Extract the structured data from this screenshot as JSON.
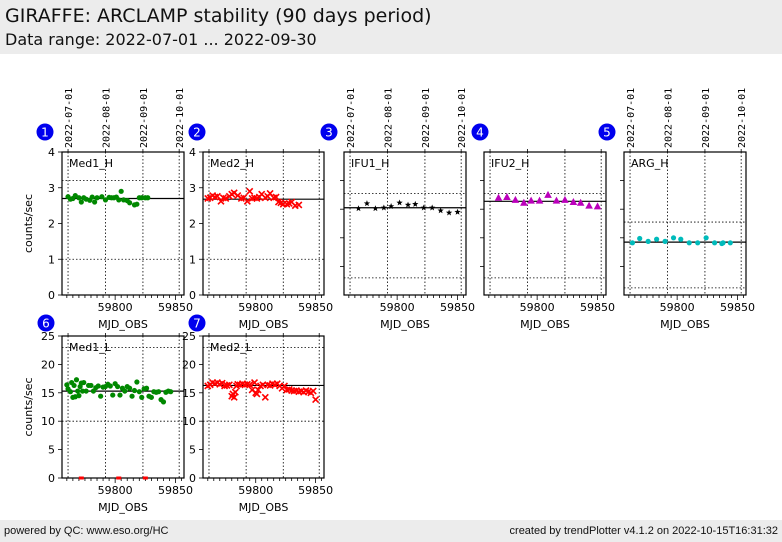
{
  "header": {
    "title": "GIRAFFE: ARCLAMP stability (90 days period)",
    "subtitle": "Data range: 2022-07-01 ... 2022-09-30"
  },
  "footer": {
    "left": "powered by QC: www.eso.org/HC",
    "right": "created by trendPlotter v4.1.2 on 2022-10-15T16:31:32"
  },
  "colors": {
    "badge": "#0000ee",
    "green": "#008800",
    "red": "#ff0000",
    "black": "#000000",
    "magenta": "#bb00bb",
    "cyan": "#00bbbb"
  },
  "chart_data": [
    {
      "id": 1,
      "type": "scatter",
      "label": "Med1_H",
      "marker": "circle",
      "color": "#008800",
      "xlabel": "MJD_OBS",
      "ylabel": "counts/sec",
      "xlim": [
        59756,
        59857
      ],
      "ylim": [
        0,
        4
      ],
      "yticks": [
        0,
        1,
        2,
        3,
        4
      ],
      "xticks": [
        59800,
        59850
      ],
      "date_ticks": [
        {
          "mjd": 59761,
          "label": "2022-07-01"
        },
        {
          "mjd": 59792,
          "label": "2022-08-01"
        },
        {
          "mjd": 59823,
          "label": "2022-09-01"
        },
        {
          "mjd": 59853,
          "label": "2022-10-01"
        }
      ],
      "mean": 2.7,
      "limits": [
        1.0,
        3.2
      ],
      "x": [
        59761,
        59763,
        59765,
        59767,
        59770,
        59772,
        59774,
        59776,
        59779,
        59781,
        59783,
        59785,
        59789,
        59792,
        59795,
        59797,
        59799,
        59801,
        59803,
        59805,
        59807,
        59810,
        59812,
        59816,
        59818,
        59820,
        59822,
        59825,
        59827
      ],
      "y": [
        2.75,
        2.68,
        2.7,
        2.78,
        2.72,
        2.6,
        2.72,
        2.68,
        2.65,
        2.74,
        2.6,
        2.72,
        2.75,
        2.66,
        2.73,
        2.72,
        2.72,
        2.74,
        2.66,
        2.9,
        2.66,
        2.64,
        2.58,
        2.52,
        2.54,
        2.72,
        2.72,
        2.72,
        2.72
      ]
    },
    {
      "id": 2,
      "type": "scatter",
      "label": "Med2_H",
      "marker": "x",
      "color": "#ff0000",
      "xlabel": "MJD_OBS",
      "ylabel": "",
      "xlim": [
        59756,
        59857
      ],
      "ylim": [
        0,
        4
      ],
      "yticks": [
        0,
        1,
        2,
        3,
        4
      ],
      "xticks": [
        59800,
        59850
      ],
      "date_ticks": [
        {
          "mjd": 59761,
          "label": ""
        },
        {
          "mjd": 59792,
          "label": ""
        },
        {
          "mjd": 59823,
          "label": ""
        },
        {
          "mjd": 59853,
          "label": ""
        }
      ],
      "mean": 2.68,
      "limits": [
        1.0,
        3.2
      ],
      "x": [
        59760,
        59762,
        59764,
        59766,
        59768,
        59771,
        59773,
        59775,
        59778,
        59780,
        59782,
        59785,
        59788,
        59790,
        59793,
        59795,
        59797,
        59799,
        59801,
        59803,
        59805,
        59808,
        59810,
        59812,
        59815,
        59817,
        59819,
        59821,
        59823,
        59826,
        59828,
        59830,
        59833,
        59836
      ],
      "y": [
        2.7,
        2.72,
        2.78,
        2.74,
        2.76,
        2.62,
        2.72,
        2.7,
        2.76,
        2.82,
        2.86,
        2.78,
        2.7,
        2.72,
        2.62,
        2.9,
        2.7,
        2.72,
        2.7,
        2.74,
        2.82,
        2.72,
        2.76,
        2.84,
        2.72,
        2.74,
        2.6,
        2.58,
        2.54,
        2.54,
        2.56,
        2.6,
        2.5,
        2.52
      ]
    },
    {
      "id": 3,
      "type": "scatter",
      "label": "IFU1_H",
      "marker": "star",
      "color": "#000000",
      "xlabel": "MJD_OBS",
      "ylabel": "",
      "xlim": [
        59756,
        59857
      ],
      "ylim": [
        0,
        1
      ],
      "yticks": [],
      "xticks": [
        59800,
        59850
      ],
      "date_ticks": [
        {
          "mjd": 59761,
          "label": "2022-07-01"
        },
        {
          "mjd": 59792,
          "label": "2022-08-01"
        },
        {
          "mjd": 59823,
          "label": "2022-09-01"
        },
        {
          "mjd": 59853,
          "label": "2022-10-01"
        }
      ],
      "mean": 0.61,
      "limits": [
        0.12,
        0.71
      ],
      "x": [
        59768,
        59775,
        59782,
        59789,
        59795,
        59802,
        59809,
        59815,
        59822,
        59829,
        59836,
        59843,
        59850
      ],
      "y": [
        0.605,
        0.64,
        0.605,
        0.61,
        0.62,
        0.645,
        0.63,
        0.635,
        0.61,
        0.61,
        0.59,
        0.575,
        0.58
      ]
    },
    {
      "id": 4,
      "type": "scatter",
      "label": "IFU2_H",
      "marker": "triangle",
      "color": "#bb00bb",
      "xlabel": "MJD_OBS",
      "ylabel": "",
      "xlim": [
        59756,
        59857
      ],
      "ylim": [
        0,
        1
      ],
      "yticks": [],
      "xticks": [
        59800,
        59850
      ],
      "date_ticks": [
        {
          "mjd": 59761,
          "label": ""
        },
        {
          "mjd": 59792,
          "label": ""
        },
        {
          "mjd": 59823,
          "label": ""
        },
        {
          "mjd": 59853,
          "label": ""
        }
      ],
      "mean": 0.655,
      "limits": [
        0.12,
        0.71
      ],
      "x": [
        59768,
        59775,
        59782,
        59789,
        59795,
        59802,
        59809,
        59816,
        59823,
        59830,
        59836,
        59843,
        59850
      ],
      "y": [
        0.68,
        0.685,
        0.665,
        0.645,
        0.66,
        0.66,
        0.7,
        0.66,
        0.665,
        0.65,
        0.645,
        0.625,
        0.62
      ]
    },
    {
      "id": 5,
      "type": "scatter",
      "label": "ARG_H",
      "marker": "circle",
      "color": "#00bbbb",
      "xlabel": "MJD_OBS",
      "ylabel": "",
      "xlim": [
        59756,
        59857
      ],
      "ylim": [
        0,
        1
      ],
      "yticks": [],
      "xticks": [
        59800,
        59850
      ],
      "date_ticks": [
        {
          "mjd": 59761,
          "label": "2022-07-01"
        },
        {
          "mjd": 59792,
          "label": "2022-08-01"
        },
        {
          "mjd": 59823,
          "label": "2022-09-01"
        },
        {
          "mjd": 59853,
          "label": "2022-10-01"
        }
      ],
      "mean": 0.37,
      "limits": [
        0.05,
        0.51
      ],
      "x": [
        59763,
        59769,
        59776,
        59783,
        59790,
        59797,
        59803,
        59810,
        59817,
        59824,
        59831,
        59837,
        59838,
        59844
      ],
      "y": [
        0.365,
        0.395,
        0.375,
        0.39,
        0.375,
        0.4,
        0.39,
        0.365,
        0.365,
        0.4,
        0.365,
        0.36,
        0.365,
        0.365
      ]
    },
    {
      "id": 6,
      "type": "scatter",
      "label": "Med1_L",
      "marker": "circle",
      "color": "#008800",
      "xlabel": "MJD_OBS",
      "ylabel": "counts/sec",
      "xlim": [
        59756,
        59857
      ],
      "ylim": [
        0,
        25
      ],
      "yticks": [
        0,
        5,
        10,
        15,
        20,
        25
      ],
      "xticks": [
        59800,
        59850
      ],
      "date_ticks": [
        {
          "mjd": 59761,
          "label": ""
        },
        {
          "mjd": 59792,
          "label": ""
        },
        {
          "mjd": 59823,
          "label": ""
        },
        {
          "mjd": 59853,
          "label": ""
        }
      ],
      "mean": 15.3,
      "limits": [
        10.0,
        23.0
      ],
      "x": [
        59760,
        59761,
        59763,
        59764,
        59765,
        59766,
        59767,
        59768,
        59769,
        59770,
        59771,
        59772,
        59773,
        59774,
        59776,
        59778,
        59780,
        59782,
        59784,
        59786,
        59788,
        59790,
        59792,
        59794,
        59796,
        59798,
        59800,
        59802,
        59804,
        59806,
        59808,
        59810,
        59812,
        59814,
        59816,
        59818,
        59820,
        59822,
        59824,
        59826,
        59828,
        59830,
        59832,
        59834,
        59836,
        59838,
        59840,
        59842,
        59844,
        59846
      ],
      "y": [
        16.4,
        15.7,
        15.2,
        16.8,
        14.2,
        16.3,
        14.3,
        17.3,
        15.3,
        14.5,
        16.1,
        16.7,
        15.3,
        16.8,
        15.3,
        16.3,
        16.3,
        15.3,
        15.9,
        16.2,
        14.4,
        16.0,
        16.1,
        16.5,
        16.2,
        14.6,
        16.6,
        16.1,
        14.6,
        15.8,
        15.3,
        16.1,
        15.8,
        14.4,
        15.4,
        16.9,
        15.2,
        14.2,
        15.7,
        15.8,
        14.4,
        14.2,
        15.2,
        15.1,
        15.2,
        13.8,
        13.4,
        15.1,
        15.3,
        15.2
      ],
      "outliers_red": [
        {
          "x": 59772,
          "y": 0
        },
        {
          "x": 59803,
          "y": 0
        },
        {
          "x": 59825,
          "y": 0
        }
      ]
    },
    {
      "id": 7,
      "type": "scatter",
      "label": "Med2_L",
      "marker": "x",
      "color": "#ff0000",
      "xlabel": "MJD_OBS",
      "ylabel": "",
      "xlim": [
        59756,
        59857
      ],
      "ylim": [
        0,
        25
      ],
      "yticks": [
        0,
        5,
        10,
        15,
        20,
        25
      ],
      "xticks": [
        59800,
        59850
      ],
      "date_ticks": [
        {
          "mjd": 59761,
          "label": ""
        },
        {
          "mjd": 59792,
          "label": ""
        },
        {
          "mjd": 59823,
          "label": ""
        },
        {
          "mjd": 59853,
          "label": ""
        }
      ],
      "mean": 16.3,
      "limits": [
        10.0,
        23.0
      ],
      "x": [
        59760,
        59762,
        59764,
        59766,
        59768,
        59770,
        59772,
        59774,
        59776,
        59778,
        59780,
        59781,
        59782,
        59783,
        59784,
        59785,
        59787,
        59789,
        59791,
        59793,
        59795,
        59797,
        59799,
        59800,
        59801,
        59802,
        59804,
        59806,
        59808,
        59810,
        59812,
        59814,
        59816,
        59818,
        59820,
        59822,
        59824,
        59826,
        59828,
        59830,
        59832,
        59834,
        59836,
        59838,
        59840,
        59842,
        59844,
        59846,
        59848,
        59850
      ],
      "y": [
        16.2,
        16.4,
        16.8,
        16.6,
        16.8,
        16.5,
        16.7,
        16.2,
        16.3,
        16.4,
        14.4,
        14.8,
        14.2,
        15.1,
        16.2,
        16.5,
        16.4,
        16.6,
        16.4,
        16.5,
        16.4,
        15.5,
        16.8,
        15.0,
        14.8,
        15.5,
        16.2,
        16.4,
        14.2,
        16.4,
        16.3,
        16.6,
        16.4,
        16.6,
        16.2,
        15.8,
        16.2,
        15.5,
        15.6,
        15.4,
        15.3,
        15.4,
        15.2,
        15.3,
        15.1,
        15.4,
        15.2,
        15.0,
        15.3,
        13.8
      ]
    }
  ]
}
